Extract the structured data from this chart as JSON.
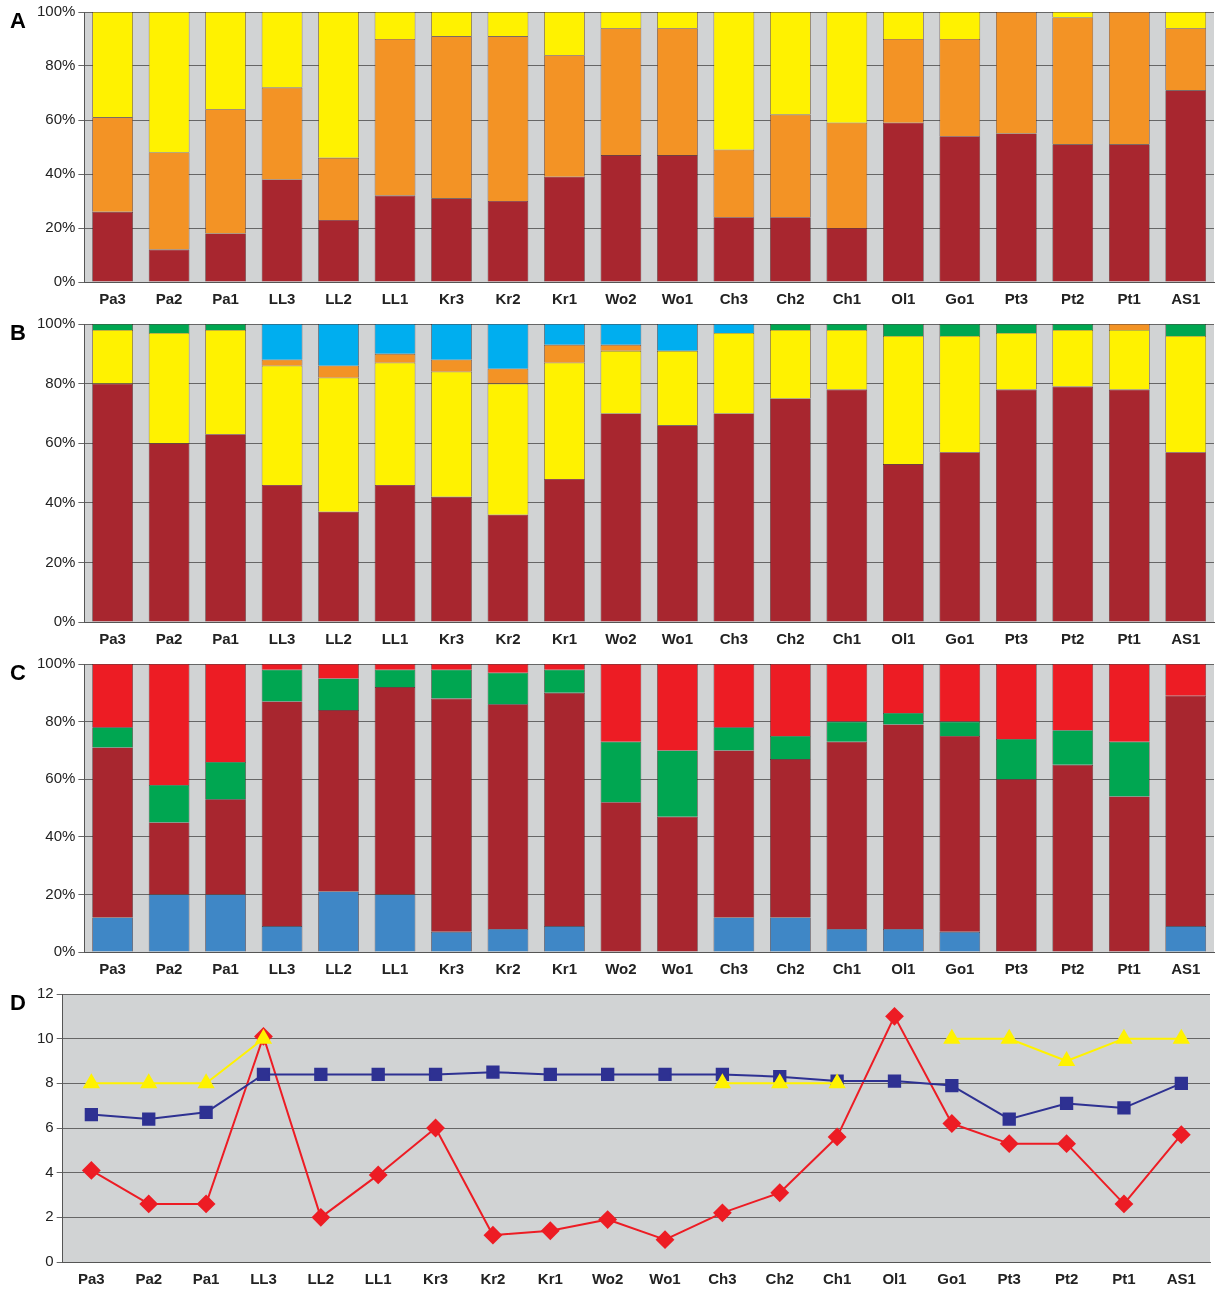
{
  "chart_data": [
    {
      "type": "bar",
      "title": "A",
      "stacked": true,
      "grid": "y",
      "categories": [
        "Pa3",
        "Pa2",
        "Pa1",
        "LL3",
        "LL2",
        "LL1",
        "Kr3",
        "Kr2",
        "Kr1",
        "Wo2",
        "Wo1",
        "Ch3",
        "Ch2",
        "Ch1",
        "Ol1",
        "Go1",
        "Pt3",
        "Pt2",
        "Pt1",
        "AS1"
      ],
      "ylim": [
        0,
        100
      ],
      "yticks": [
        {
          "value": 0,
          "label": "0%"
        },
        {
          "value": 20,
          "label": "20%"
        },
        {
          "value": 40,
          "label": "40%"
        },
        {
          "value": 60,
          "label": "60%"
        },
        {
          "value": 80,
          "label": "80%"
        },
        {
          "value": 100,
          "label": "100%"
        }
      ],
      "series": [
        {
          "color": "#a8262f",
          "values": [
            26,
            12,
            18,
            38,
            23,
            32,
            31,
            30,
            39,
            47,
            47,
            24,
            24,
            20,
            59,
            54,
            55,
            51,
            51,
            71
          ]
        },
        {
          "color": "#f39325",
          "values": [
            35,
            36,
            46,
            34,
            23,
            58,
            60,
            61,
            45,
            47,
            47,
            25,
            38,
            39,
            31,
            36,
            45,
            47,
            49,
            23
          ]
        },
        {
          "color": "#fff200",
          "values": [
            39,
            52,
            36,
            28,
            54,
            10,
            9,
            9,
            16,
            6,
            6,
            51,
            38,
            41,
            10,
            10,
            0,
            2,
            0,
            6
          ]
        }
      ]
    },
    {
      "type": "bar",
      "title": "B",
      "stacked": true,
      "grid": "y",
      "categories": [
        "Pa3",
        "Pa2",
        "Pa1",
        "LL3",
        "LL2",
        "LL1",
        "Kr3",
        "Kr2",
        "Kr1",
        "Wo2",
        "Wo1",
        "Ch3",
        "Ch2",
        "Ch1",
        "Ol1",
        "Go1",
        "Pt3",
        "Pt2",
        "Pt1",
        "AS1"
      ],
      "ylim": [
        0,
        100
      ],
      "yticks": [
        {
          "value": 0,
          "label": "0%"
        },
        {
          "value": 20,
          "label": "20%"
        },
        {
          "value": 40,
          "label": "40%"
        },
        {
          "value": 60,
          "label": "60%"
        },
        {
          "value": 80,
          "label": "80%"
        },
        {
          "value": 100,
          "label": "100%"
        }
      ],
      "series": [
        {
          "color": "#a8262f",
          "values": [
            80,
            60,
            63,
            46,
            37,
            46,
            42,
            36,
            48,
            70,
            66,
            70,
            75,
            78,
            53,
            57,
            78,
            79,
            78,
            57
          ]
        },
        {
          "color": "#fff200",
          "values": [
            18,
            37,
            35,
            40,
            45,
            41,
            42,
            44,
            39,
            21,
            25,
            27,
            23,
            20,
            43,
            39,
            19,
            19,
            20,
            39
          ]
        },
        {
          "color": "#f39325",
          "values": [
            0,
            0,
            0,
            2,
            4,
            3,
            4,
            5,
            6,
            2,
            0,
            0,
            0,
            0,
            0,
            0,
            0,
            0,
            2,
            0
          ]
        },
        {
          "color": "#00aeef",
          "values": [
            0,
            0,
            0,
            12,
            14,
            10,
            12,
            15,
            7,
            7,
            9,
            3,
            0,
            0,
            0,
            0,
            0,
            0,
            0,
            0
          ]
        },
        {
          "color": "#00a651",
          "values": [
            2,
            3,
            2,
            0,
            0,
            0,
            0,
            0,
            0,
            0,
            0,
            0,
            2,
            2,
            4,
            4,
            3,
            2,
            0,
            4
          ]
        }
      ]
    },
    {
      "type": "bar",
      "title": "C",
      "stacked": true,
      "grid": "y",
      "categories": [
        "Pa3",
        "Pa2",
        "Pa1",
        "LL3",
        "LL2",
        "LL1",
        "Kr3",
        "Kr2",
        "Kr1",
        "Wo2",
        "Wo1",
        "Ch3",
        "Ch2",
        "Ch1",
        "Ol1",
        "Go1",
        "Pt3",
        "Pt2",
        "Pt1",
        "AS1"
      ],
      "ylim": [
        0,
        100
      ],
      "yticks": [
        {
          "value": 0,
          "label": "0%"
        },
        {
          "value": 20,
          "label": "20%"
        },
        {
          "value": 40,
          "label": "40%"
        },
        {
          "value": 60,
          "label": "60%"
        },
        {
          "value": 80,
          "label": "80%"
        },
        {
          "value": 100,
          "label": "100%"
        }
      ],
      "series": [
        {
          "color": "#3f87c6",
          "values": [
            12,
            20,
            20,
            9,
            21,
            20,
            7,
            8,
            9,
            0,
            0,
            12,
            12,
            8,
            8,
            7,
            0,
            0,
            0,
            9
          ]
        },
        {
          "color": "#a8262f",
          "values": [
            59,
            25,
            33,
            78,
            63,
            72,
            81,
            78,
            81,
            52,
            47,
            58,
            55,
            65,
            71,
            68,
            60,
            65,
            54,
            80
          ]
        },
        {
          "color": "#00a651",
          "values": [
            7,
            13,
            13,
            11,
            11,
            6,
            10,
            11,
            8,
            21,
            23,
            8,
            8,
            7,
            4,
            5,
            14,
            12,
            19,
            0
          ]
        },
        {
          "color": "#ed1c24",
          "values": [
            22,
            42,
            34,
            2,
            5,
            2,
            2,
            3,
            2,
            27,
            30,
            22,
            25,
            20,
            17,
            20,
            26,
            23,
            27,
            11
          ]
        }
      ]
    },
    {
      "type": "line",
      "title": "D",
      "grid": "y",
      "categories": [
        "Pa3",
        "Pa2",
        "Pa1",
        "LL3",
        "LL2",
        "LL1",
        "Kr3",
        "Kr2",
        "Kr1",
        "Wo2",
        "Wo1",
        "Ch3",
        "Ch2",
        "Ch1",
        "Ol1",
        "Go1",
        "Pt3",
        "Pt2",
        "Pt1",
        "AS1"
      ],
      "ylim": [
        0,
        12
      ],
      "yticks": [
        0,
        2,
        4,
        6,
        8,
        10,
        12
      ],
      "series": [
        {
          "color": "#fff200",
          "marker": "triangle",
          "values": [
            8,
            8,
            8,
            10,
            null,
            null,
            null,
            null,
            null,
            null,
            null,
            8,
            8,
            8,
            null,
            10,
            10,
            9,
            10,
            10
          ]
        },
        {
          "color": "#2e3192",
          "marker": "square",
          "values": [
            6.6,
            6.4,
            6.7,
            8.4,
            8.4,
            8.4,
            8.4,
            8.5,
            8.4,
            8.4,
            8.4,
            8.4,
            8.3,
            8.1,
            8.1,
            7.9,
            6.4,
            7.1,
            6.9,
            8.0
          ]
        },
        {
          "color": "#ed1c24",
          "marker": "diamond",
          "values": [
            4.1,
            2.6,
            2.6,
            10.1,
            2.0,
            3.9,
            6.0,
            1.2,
            1.4,
            1.9,
            1.0,
            2.2,
            3.1,
            5.6,
            11.0,
            6.2,
            5.3,
            5.3,
            2.6,
            5.7
          ]
        }
      ]
    }
  ]
}
